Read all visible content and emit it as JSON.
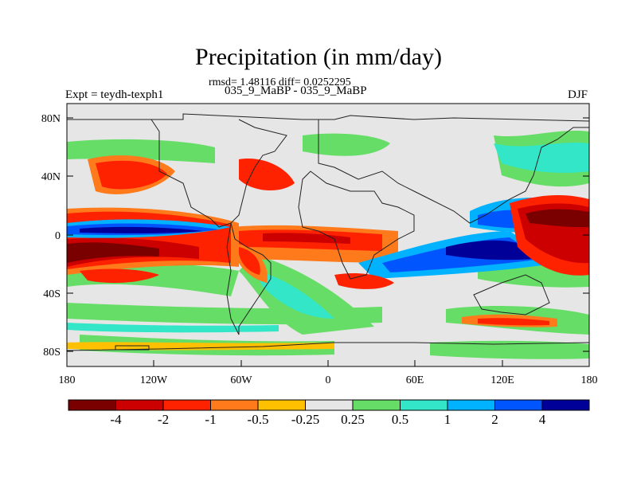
{
  "map": {
    "title": "Precipitation (in mm/day)",
    "stats": "rmsd= 1.48116 diff= 0.0252295",
    "runs": "035_9_MaBP - 035_9_MaBP",
    "expt": "Expt = teydh-texph1",
    "season": "DJF",
    "lon_ticks": [
      "180",
      "120W",
      "60W",
      "0",
      "60E",
      "120E",
      "180"
    ],
    "lat_ticks": [
      "80N",
      "40N",
      "0",
      "40S",
      "80S"
    ],
    "colorbar": {
      "colors": [
        "#7a0000",
        "#cc0000",
        "#ff2200",
        "#ff7a1a",
        "#ffc000",
        "#e6e6e6",
        "#66dd66",
        "#33e6c8",
        "#00b2ff",
        "#0055ff",
        "#000099"
      ],
      "labels": [
        "-4",
        "-2",
        "-1",
        "-0.5",
        "-0.25",
        "0.25",
        "0.5",
        "1",
        "2",
        "4"
      ]
    }
  }
}
